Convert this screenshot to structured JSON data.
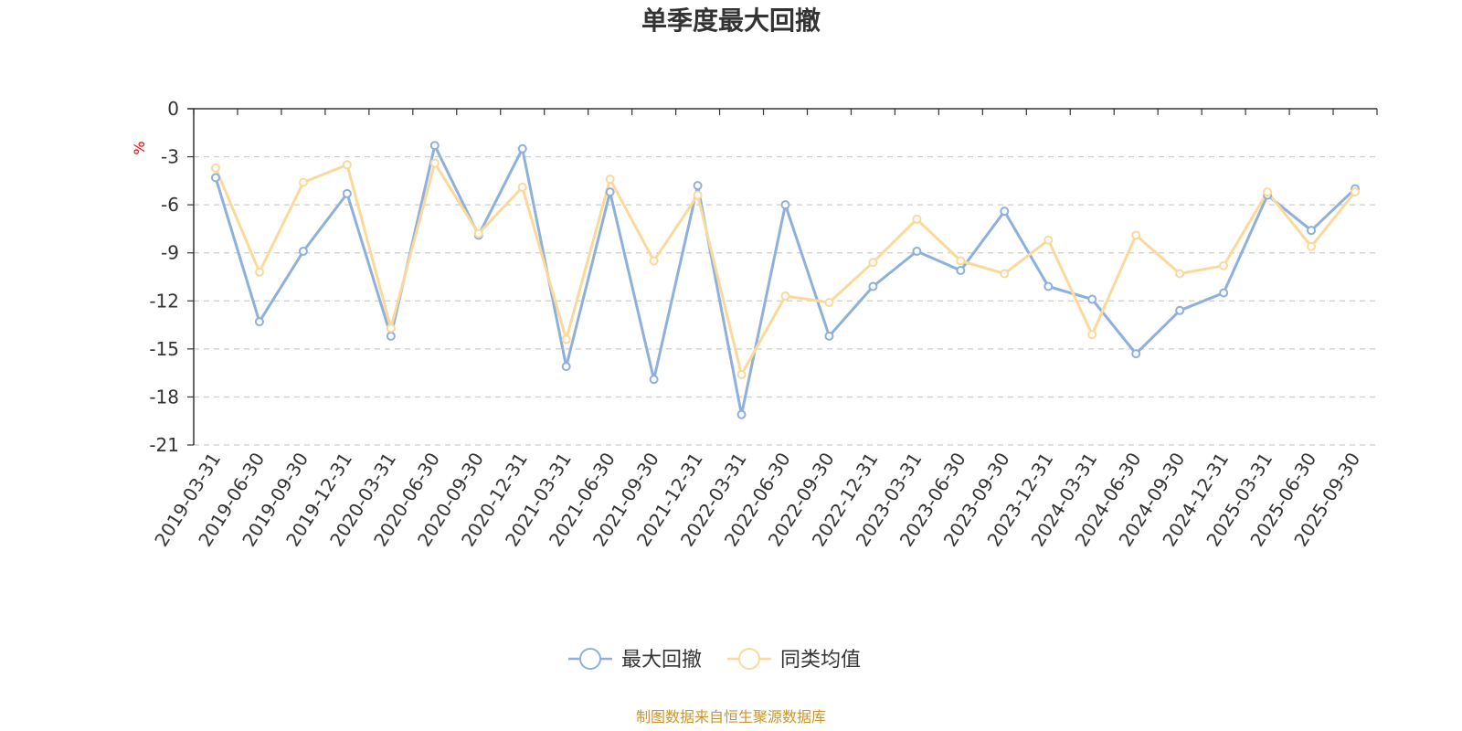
{
  "chart_data": {
    "type": "line",
    "title": "单季度最大回撤",
    "ylabel": "%",
    "xlabel": "",
    "ylim": [
      -21,
      0
    ],
    "yticks": [
      0,
      -3,
      -6,
      -9,
      -12,
      -15,
      -18,
      -21
    ],
    "grid": true,
    "legend_position": "bottom",
    "categories": [
      "2019-03-31",
      "2019-06-30",
      "2019-09-30",
      "2019-12-31",
      "2020-03-31",
      "2020-06-30",
      "2020-09-30",
      "2020-12-31",
      "2021-03-31",
      "2021-06-30",
      "2021-09-30",
      "2021-12-31",
      "2022-03-31",
      "2022-06-30",
      "2022-09-30",
      "2022-12-31",
      "2023-03-31",
      "2023-06-30",
      "2023-09-30",
      "2023-12-31",
      "2024-03-31",
      "2024-06-30",
      "2024-09-30",
      "2024-12-31",
      "2025-03-31",
      "2025-06-30",
      "2025-09-30"
    ],
    "series": [
      {
        "name": "最大回撤",
        "color": "#8eb0dc",
        "values": [
          -4.3,
          -13.3,
          -8.9,
          -5.3,
          -14.2,
          -2.3,
          -7.9,
          -2.5,
          -16.1,
          -5.2,
          -16.9,
          -4.8,
          -19.1,
          -6.0,
          -14.2,
          -11.1,
          -8.9,
          -10.1,
          -6.4,
          -11.1,
          -11.9,
          -15.3,
          -12.6,
          -11.5,
          -5.4,
          -7.6,
          -5.0
        ]
      },
      {
        "name": "同类均值",
        "color": "#fad99b",
        "values": [
          -3.7,
          -10.2,
          -4.6,
          -3.5,
          -13.7,
          -3.4,
          -7.8,
          -4.9,
          -14.4,
          -4.4,
          -9.5,
          -5.4,
          -16.6,
          -11.7,
          -12.1,
          -9.6,
          -6.9,
          -9.5,
          -10.3,
          -8.2,
          -14.1,
          -7.9,
          -10.3,
          -9.8,
          -5.2,
          -8.6,
          -5.2
        ]
      }
    ],
    "axis_color": "#333333",
    "grid_color": "#cccccc",
    "unit_color": "#ff0000"
  },
  "footer": {
    "source": "制图数据来自恒生聚源数据库",
    "source_color": "#c8962d"
  }
}
